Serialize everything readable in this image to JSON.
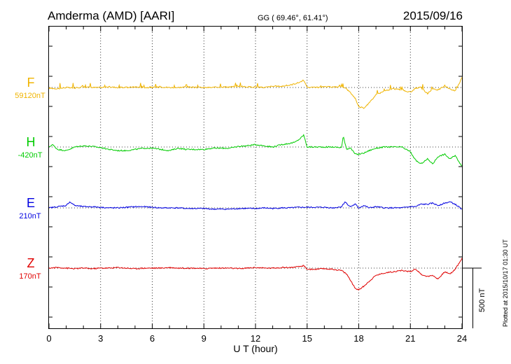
{
  "header": {
    "station": "Amderma (AMD)  [AARI]",
    "coords": "GG ( 69.46°,  61.41°)",
    "date": "2015/09/16"
  },
  "footer_note": "Plotted at 2015/10/17 01:30 UT",
  "scale_label": "500 nT",
  "chart_data": {
    "type": "line",
    "xlabel": "U T (hour)",
    "xlim": [
      0,
      24
    ],
    "xticks": [
      0,
      3,
      6,
      9,
      12,
      15,
      18,
      21,
      24
    ],
    "tick_labels": [
      "0",
      "3",
      "6",
      "9",
      "12",
      "15",
      "18",
      "21",
      "24"
    ],
    "scale_nT": 500,
    "grid": "dotted",
    "series": [
      {
        "name": "F",
        "baseline_label": "59120nT",
        "color": "#f0b400",
        "x": [
          0,
          0.5,
          1,
          1.5,
          2,
          2.5,
          3,
          3.5,
          4,
          4.5,
          5,
          5.5,
          6,
          6.5,
          7,
          7.5,
          8,
          8.5,
          9,
          9.5,
          10,
          10.5,
          11,
          11.5,
          12,
          12.5,
          13,
          13.5,
          14,
          14.5,
          14.8,
          15,
          15.5,
          16,
          16.5,
          17,
          17.2,
          17.5,
          17.8,
          18,
          18.3,
          18.6,
          19,
          19.5,
          20,
          20.5,
          21,
          21.3,
          21.6,
          22,
          22.3,
          22.6,
          23,
          23.3,
          23.6,
          24
        ],
        "y": [
          -5,
          -10,
          0,
          -5,
          5,
          0,
          0,
          5,
          0,
          0,
          5,
          0,
          0,
          5,
          0,
          0,
          5,
          0,
          0,
          0,
          5,
          5,
          10,
          5,
          5,
          0,
          10,
          10,
          20,
          40,
          60,
          0,
          0,
          5,
          5,
          5,
          0,
          -40,
          -90,
          -160,
          -170,
          -130,
          -60,
          -30,
          -10,
          -20,
          -40,
          -5,
          0,
          -50,
          -10,
          -20,
          10,
          -10,
          -30,
          80
        ]
      },
      {
        "name": "H",
        "baseline_label": "-420nT",
        "color": "#00cc00",
        "x": [
          0,
          0.2,
          0.5,
          1,
          1.5,
          2,
          2.5,
          3,
          3.5,
          4,
          4.5,
          5,
          5.5,
          6,
          6.5,
          7,
          7.5,
          8,
          8.5,
          9,
          9.5,
          10,
          10.5,
          11,
          11.5,
          12,
          12.5,
          13,
          13.5,
          14,
          14.3,
          14.6,
          14.8,
          15,
          15.5,
          16,
          16.5,
          17,
          17.1,
          17.3,
          17.5,
          17.8,
          18,
          18.3,
          18.6,
          19,
          19.5,
          20,
          20.5,
          21,
          21.3,
          21.6,
          22,
          22.3,
          22.6,
          23,
          23.3,
          23.6,
          24
        ],
        "y": [
          0,
          20,
          -20,
          -30,
          0,
          10,
          5,
          -5,
          -20,
          -30,
          -30,
          -20,
          -10,
          -10,
          -20,
          -30,
          -10,
          -20,
          -20,
          -20,
          -10,
          -10,
          -10,
          5,
          10,
          20,
          10,
          0,
          20,
          30,
          40,
          70,
          100,
          0,
          0,
          0,
          0,
          -5,
          90,
          -20,
          -5,
          -60,
          -60,
          -50,
          -30,
          -10,
          0,
          0,
          0,
          -40,
          -110,
          -140,
          -100,
          -140,
          -80,
          -60,
          -100,
          -70,
          -160
        ]
      },
      {
        "name": "E",
        "baseline_label": "210nT",
        "color": "#0000e0",
        "x": [
          0,
          0.5,
          1,
          1.2,
          1.5,
          2,
          2.5,
          3,
          3.5,
          4,
          4.5,
          5,
          5.5,
          6,
          6.5,
          7,
          7.5,
          8,
          8.5,
          9,
          9.5,
          10,
          10.5,
          11,
          11.5,
          12,
          12.5,
          13,
          13.5,
          14,
          14.5,
          15,
          15.5,
          16,
          16.5,
          17,
          17.2,
          17.5,
          17.8,
          18,
          18.3,
          18.6,
          19,
          19.5,
          20,
          20.5,
          21,
          21.3,
          21.6,
          22,
          22.3,
          22.6,
          23,
          23.3,
          23.6,
          24
        ],
        "y": [
          0,
          10,
          20,
          50,
          20,
          10,
          10,
          5,
          0,
          0,
          5,
          10,
          10,
          5,
          0,
          0,
          0,
          -5,
          -5,
          -5,
          -10,
          -10,
          -10,
          -5,
          -5,
          -5,
          0,
          -5,
          0,
          0,
          5,
          5,
          5,
          5,
          0,
          10,
          50,
          10,
          30,
          0,
          20,
          0,
          10,
          0,
          0,
          0,
          10,
          10,
          30,
          30,
          40,
          20,
          40,
          50,
          30,
          -10
        ]
      },
      {
        "name": "Z",
        "baseline_label": "170nT",
        "color": "#e00000",
        "x": [
          0,
          0.5,
          1,
          1.5,
          2,
          2.5,
          3,
          3.5,
          4,
          4.5,
          5,
          5.5,
          6,
          6.5,
          7,
          7.5,
          8,
          8.5,
          9,
          9.5,
          10,
          10.5,
          11,
          11.5,
          12,
          12.5,
          13,
          13.5,
          14,
          14.5,
          14.8,
          15,
          15.5,
          16,
          16.5,
          17,
          17.3,
          17.6,
          17.8,
          18,
          18.3,
          18.6,
          19,
          19.5,
          20,
          20.5,
          21,
          21.3,
          21.6,
          22,
          22.3,
          22.6,
          23,
          23.3,
          23.6,
          24
        ],
        "y": [
          0,
          5,
          0,
          -5,
          0,
          -5,
          0,
          0,
          5,
          0,
          -5,
          0,
          0,
          0,
          5,
          0,
          0,
          0,
          -5,
          0,
          0,
          0,
          -5,
          0,
          5,
          0,
          0,
          5,
          5,
          10,
          20,
          -10,
          -10,
          -5,
          -10,
          -20,
          -50,
          -120,
          -170,
          -180,
          -150,
          -110,
          -60,
          -40,
          -30,
          -20,
          -30,
          -5,
          -50,
          -70,
          -60,
          -90,
          -30,
          -50,
          -10,
          80
        ]
      }
    ]
  }
}
